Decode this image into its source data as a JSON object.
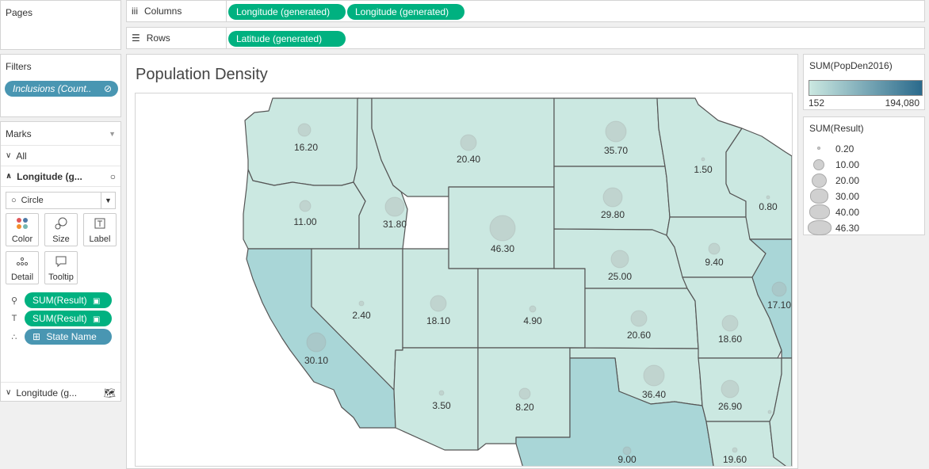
{
  "pages": {
    "title": "Pages"
  },
  "filters": {
    "title": "Filters",
    "items": [
      {
        "label": "Inclusions (Count.."
      }
    ]
  },
  "marks": {
    "title": "Marks",
    "all_label": "All",
    "layer_label": "Longitude (g...",
    "mark_type": "Circle",
    "cards": {
      "color": "Color",
      "size": "Size",
      "label": "Label",
      "detail": "Detail",
      "tooltip": "Tooltip"
    },
    "fields": [
      {
        "label": "SUM(Result)",
        "role": "size"
      },
      {
        "label": "SUM(Result)",
        "role": "label"
      },
      {
        "label": "State Name",
        "role": "detail"
      }
    ],
    "second_layer_label": "Longitude (g..."
  },
  "shelves": {
    "columns_label": "Columns",
    "columns": [
      "Longitude (generated)",
      "Longitude (generated)"
    ],
    "rows_label": "Rows",
    "rows": [
      "Latitude (generated)"
    ]
  },
  "viz": {
    "title": "Population Density"
  },
  "colors": {
    "accent_green": "#00b180",
    "accent_blue": "#4996b2",
    "map_light": "#cbe8e1",
    "map_dark": "#2a6a8c"
  },
  "legend_color": {
    "title": "SUM(PopDen2016)",
    "min": "152",
    "max": "194,080"
  },
  "legend_size": {
    "title": "SUM(Result)",
    "items": [
      "0.20",
      "10.00",
      "20.00",
      "30.00",
      "40.00",
      "46.30"
    ]
  },
  "map_values": {
    "washington": "16.20",
    "oregon": "11.00",
    "california": "30.10",
    "idaho": "31.80",
    "nevada": "2.40",
    "montana": "20.40",
    "wyoming": "46.30",
    "utah": "18.10",
    "arizona": "3.50",
    "colorado": "4.90",
    "new_mexico": "8.20",
    "north_dakota": "35.70",
    "south_dakota": "29.80",
    "nebraska": "25.00",
    "kansas": "20.60",
    "oklahoma": "36.40",
    "texas": "9.00",
    "minnesota": "1.50",
    "iowa": "9.40",
    "missouri": "18.60",
    "arkansas": "26.90",
    "louisiana": "19.60",
    "wisconsin": "0.80",
    "illinois": "17.10"
  }
}
